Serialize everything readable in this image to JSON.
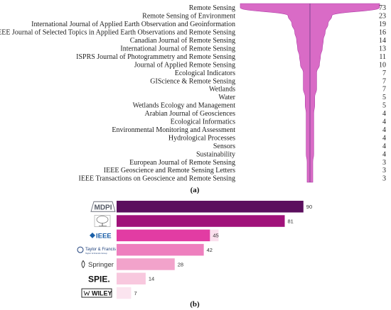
{
  "chart_data": [
    {
      "type": "funnel",
      "panel_label": "(a)",
      "categories": [
        "Remote Sensing",
        "Remote Sensing of Environment",
        "International Journal of Applied Earth Observation and Geoinformation",
        "IEEE Journal of Selected Topics in Applied Earth Observations and Remote Sensing",
        "Canadian Journal of Remote Sensing",
        "International Journal of Remote Sensing",
        "ISPRS Journal of Photogrammetry and Remote Sensing",
        "Journal of Applied Remote Sensing",
        "Ecological Indicators",
        "GIScience & Remote Sensing",
        "Wetlands",
        "Water",
        "Wetlands Ecology and Management",
        "Arabian Journal of Geosciences",
        "Ecological Informatics",
        "Environmental Monitoring and Assessment",
        "Hydrological Processes",
        "Sensors",
        "Sustainability",
        "European Journal of Remote Sensing",
        "IEEE Geoscience and Remote Sensing Letters",
        "IEEE Transactions on Geoscience and Remote Sensing"
      ],
      "values": [
        73,
        23,
        19,
        16,
        14,
        13,
        11,
        10,
        7,
        7,
        7,
        5,
        5,
        4,
        4,
        4,
        4,
        4,
        4,
        3,
        3,
        3
      ],
      "colors": {
        "fill": "#d96bc6",
        "edge": "#b040a8",
        "midline": "#6a3b86"
      }
    },
    {
      "type": "bar",
      "orientation": "horizontal",
      "panel_label": "(b)",
      "categories": [
        "MDPI",
        "Elsevier",
        "IEEE",
        "Taylor & Francis",
        "Springer",
        "SPIE.",
        "WILEY"
      ],
      "logo_subtext": {
        "Taylor & Francis": "Taylor & Francis Group",
        "WILEY": ""
      },
      "values": [
        90,
        81,
        45,
        42,
        28,
        14,
        7
      ],
      "colors": [
        "#5b0f5e",
        "#a0127a",
        "#e23ca3",
        "#ee7fbe",
        "#f2a3cb",
        "#f8c8de",
        "#fbe4ef"
      ],
      "value_label_backgrounds": [
        "",
        "",
        "#fbe0ee",
        "",
        "",
        "",
        ""
      ],
      "xlim": [
        0,
        100
      ]
    }
  ]
}
